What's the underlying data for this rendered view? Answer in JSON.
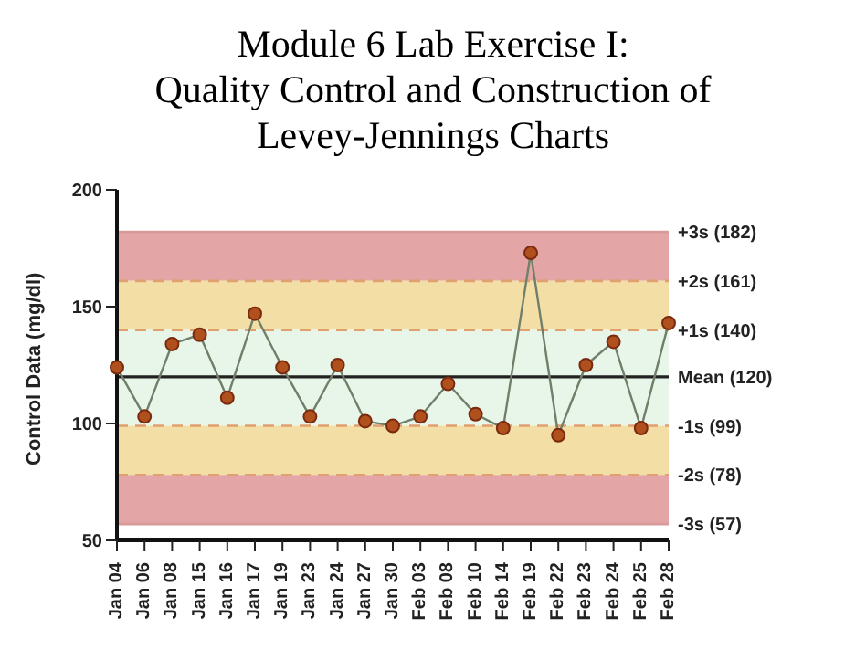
{
  "chart_data": {
    "type": "line",
    "title": "Module 6 Lab Exercise I:\nQuality Control and Construction of\nLevey-Jennings Charts",
    "ylabel": "Control Data (mg/dl)",
    "categories": [
      "Jan 04",
      "Jan 06",
      "Jan 08",
      "Jan 15",
      "Jan 16",
      "Jan 17",
      "Jan 19",
      "Jan 23",
      "Jan 24",
      "Jan 27",
      "Jan 30",
      "Feb 03",
      "Feb 08",
      "Feb 10",
      "Feb 14",
      "Feb 19",
      "Feb 22",
      "Feb 23",
      "Feb 24",
      "Feb 25",
      "Feb 28"
    ],
    "series": [
      {
        "color": "#6f7f6a",
        "values": [
          124,
          103,
          134,
          138,
          111,
          147,
          124,
          103,
          125,
          101,
          99,
          103,
          117,
          104,
          98,
          173,
          95,
          125,
          135,
          98,
          143
        ]
      }
    ],
    "marker": "circle",
    "ylim": [
      50,
      200
    ],
    "yticks": [
      50,
      100,
      150,
      200
    ],
    "grid": false,
    "legend": false,
    "bands": [
      {
        "axis": "y",
        "from": 161,
        "to": 182,
        "color": "#e3a5a5"
      },
      {
        "axis": "y",
        "from": 140,
        "to": 161,
        "color": "#f3dfa6"
      },
      {
        "axis": "y",
        "from": 99,
        "to": 140,
        "color": "#e8f6ea"
      },
      {
        "axis": "y",
        "from": 78,
        "to": 99,
        "color": "#f3dfa6"
      },
      {
        "axis": "y",
        "from": 57,
        "to": 78,
        "color": "#e3a5a5"
      }
    ],
    "ref_lines": [
      {
        "axis": "y",
        "value": 182,
        "label": "+3s (182)",
        "color": "#d99a9a",
        "line_style": "solid"
      },
      {
        "axis": "y",
        "value": 161,
        "label": "+2s (161)",
        "color": "#e0a070",
        "line_style": "dashed"
      },
      {
        "axis": "y",
        "value": 140,
        "label": "+1s (140)",
        "color": "#e0a070",
        "line_style": "dashed"
      },
      {
        "axis": "y",
        "value": 120,
        "label": "Mean (120)",
        "color": "#222222",
        "line_style": "solid"
      },
      {
        "axis": "y",
        "value": 99,
        "label": "-1s (99)",
        "color": "#e0a070",
        "line_style": "dashed"
      },
      {
        "axis": "y",
        "value": 78,
        "label": "-2s (78)",
        "color": "#e0a070",
        "line_style": "dashed"
      },
      {
        "axis": "y",
        "value": 57,
        "label": "-3s (57)",
        "color": "#d99a9a",
        "line_style": "solid"
      }
    ]
  }
}
